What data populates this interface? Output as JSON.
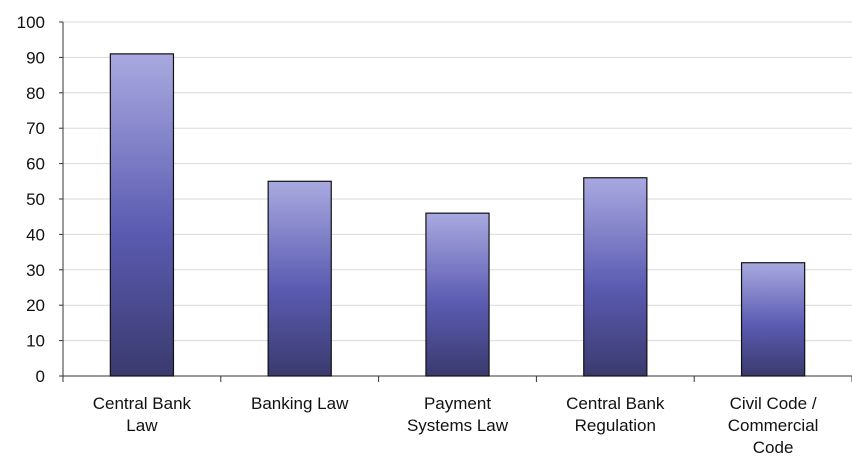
{
  "chart_data": {
    "type": "bar",
    "title": "",
    "xlabel": "",
    "ylabel": "",
    "categories": [
      [
        "Central Bank",
        "Law"
      ],
      [
        "Banking Law"
      ],
      [
        "Payment",
        "Systems Law"
      ],
      [
        "Central Bank",
        "Regulation"
      ],
      [
        "Civil Code /",
        "Commercial",
        "Code"
      ]
    ],
    "values": [
      91,
      55,
      46,
      56,
      32
    ],
    "ylim": [
      0,
      100
    ],
    "yticks": [
      0,
      10,
      20,
      30,
      40,
      50,
      60,
      70,
      80,
      90,
      100
    ],
    "grid": true,
    "legend": "none",
    "colors": {
      "bar_top": "#a9a9e0",
      "bar_mid": "#5b5bb2",
      "bar_bottom": "#3a3a6e",
      "bar_outline": "#111111",
      "gridline": "#d9d9d9",
      "axis": "#333333"
    }
  }
}
